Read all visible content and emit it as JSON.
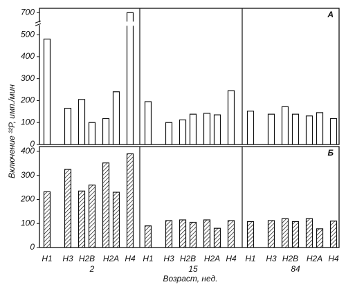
{
  "chart_data": {
    "type": "bar",
    "ylabel": "Включение ³²P, имп./мин",
    "xlabel": "Возраст, нед.",
    "categories": [
      "H1",
      "H3",
      "H2B",
      null,
      "H2A",
      null,
      "H4",
      "H1",
      "H3",
      "H2B",
      null,
      "H2A",
      null,
      "H4",
      "H1",
      "H3",
      "H2B",
      null,
      "H2A",
      null,
      "H4"
    ],
    "groups": [
      "2",
      "15",
      "84"
    ],
    "panels": [
      {
        "label": "А",
        "fill": "open",
        "ylim": [
          0,
          720
        ],
        "axis_break": [
          550,
          650
        ],
        "yticks": [
          0,
          100,
          200,
          300,
          400,
          500,
          700
        ],
        "values": [
          480,
          165,
          205,
          100,
          118,
          240,
          700,
          195,
          100,
          112,
          138,
          142,
          135,
          245,
          152,
          138,
          172,
          138,
          130,
          145,
          118
        ]
      },
      {
        "label": "Б",
        "fill": "hatch",
        "ylim": [
          0,
          420
        ],
        "yticks": [
          0,
          100,
          200,
          300,
          400
        ],
        "values": [
          232,
          325,
          235,
          260,
          352,
          230,
          390,
          90,
          112,
          115,
          105,
          115,
          80,
          112,
          108,
          112,
          120,
          108,
          120,
          78,
          110
        ]
      }
    ]
  }
}
